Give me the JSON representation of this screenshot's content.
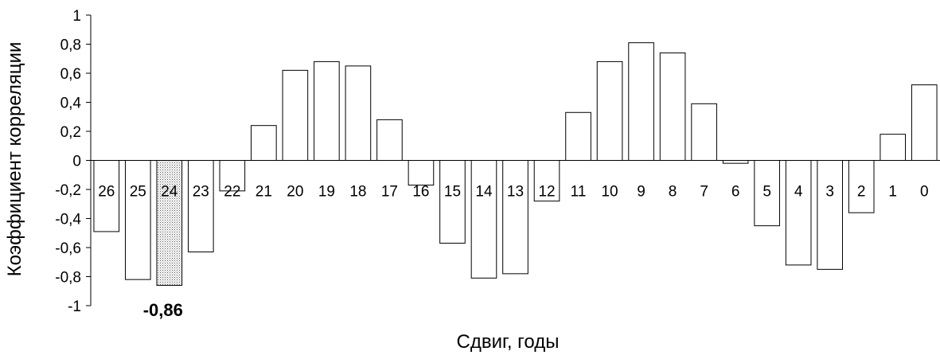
{
  "chart_data": {
    "type": "bar",
    "xlabel": "Сдвиг, годы",
    "ylabel": "Коэффициент корреляции",
    "ylim": [
      -1,
      1
    ],
    "yticks": [
      1,
      0.8,
      0.6,
      0.4,
      0.2,
      0,
      -0.2,
      -0.4,
      -0.6,
      -0.8,
      -1
    ],
    "ytick_labels": [
      "1",
      "0,8",
      "0,6",
      "0,4",
      "0,2",
      "0",
      "-0,2",
      "-0,4",
      "-0,6",
      "-0,8",
      "-1"
    ],
    "categories": [
      "26",
      "25",
      "24",
      "23",
      "22",
      "21",
      "20",
      "19",
      "18",
      "17",
      "16",
      "15",
      "14",
      "13",
      "12",
      "11",
      "10",
      "9",
      "8",
      "7",
      "6",
      "5",
      "4",
      "3",
      "2",
      "1",
      "0"
    ],
    "values": [
      -0.49,
      -0.82,
      -0.86,
      -0.63,
      -0.21,
      0.24,
      0.62,
      0.68,
      0.65,
      0.28,
      -0.17,
      -0.57,
      -0.81,
      -0.78,
      -0.28,
      0.33,
      0.68,
      0.81,
      0.74,
      0.39,
      -0.02,
      -0.45,
      -0.72,
      -0.75,
      -0.36,
      0.18,
      0.52
    ],
    "highlight_index": 2,
    "annotation": "-0,86",
    "colors": {
      "bar_fill": "#ffffff",
      "bar_stroke": "#000000",
      "highlight_fill": "#d9d9d9"
    }
  }
}
